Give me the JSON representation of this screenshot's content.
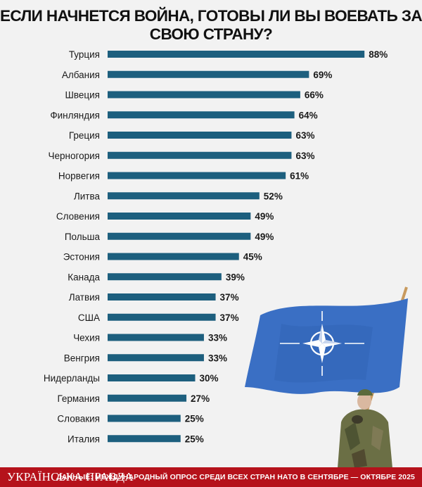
{
  "title": "ЕСЛИ НАЧНЕТСЯ ВОЙНА, ГОТОВЫ ЛИ ВЫ ВОЕВАТЬ ЗА СВОЮ СТРАНУ?",
  "footer": {
    "brand": "УКРАЇНСЬКА ПРАВДА",
    "source": "ДАННЫЕ: МЕЖДУНАРОДНЫЙ ОПРОС СРЕДИ ВСЕХ СТРАН НАТО В СЕНТЯБРЕ — ОКТЯБРЕ 2025"
  },
  "colors": {
    "bar": "#1d5f7e",
    "footer": "#b5121b",
    "flag": "#3a6fc4",
    "background": "#f2f2f2"
  },
  "icons": {
    "flag": "nato-flag-icon",
    "soldier": "soldier-icon"
  },
  "chart_data": {
    "type": "bar",
    "orientation": "horizontal",
    "title": "ЕСЛИ НАЧНЕТСЯ ВОЙНА, ГОТОВЫ ЛИ ВЫ ВОЕВАТЬ ЗА СВОЮ СТРАНУ?",
    "categories": [
      "Турция",
      "Албания",
      "Швеция",
      "Финляндия",
      "Греция",
      "Черногория",
      "Норвегия",
      "Литва",
      "Словения",
      "Польша",
      "Эстония",
      "Канада",
      "Латвия",
      "США",
      "Чехия",
      "Венгрия",
      "Нидерланды",
      "Германия",
      "Словакия",
      "Италия"
    ],
    "values": [
      88,
      69,
      66,
      64,
      63,
      63,
      61,
      52,
      49,
      49,
      45,
      39,
      37,
      37,
      33,
      33,
      30,
      27,
      25,
      25
    ],
    "labels": [
      "88%",
      "69%",
      "66%",
      "64%",
      "63%",
      "63%",
      "61%",
      "52%",
      "49%",
      "49%",
      "45%",
      "39%",
      "37%",
      "37%",
      "33%",
      "33%",
      "30%",
      "27%",
      "25%",
      "25%"
    ],
    "xlabel": "",
    "ylabel": "",
    "unit": "%",
    "xlim": [
      0,
      100
    ],
    "grid": false,
    "legend": "none"
  }
}
